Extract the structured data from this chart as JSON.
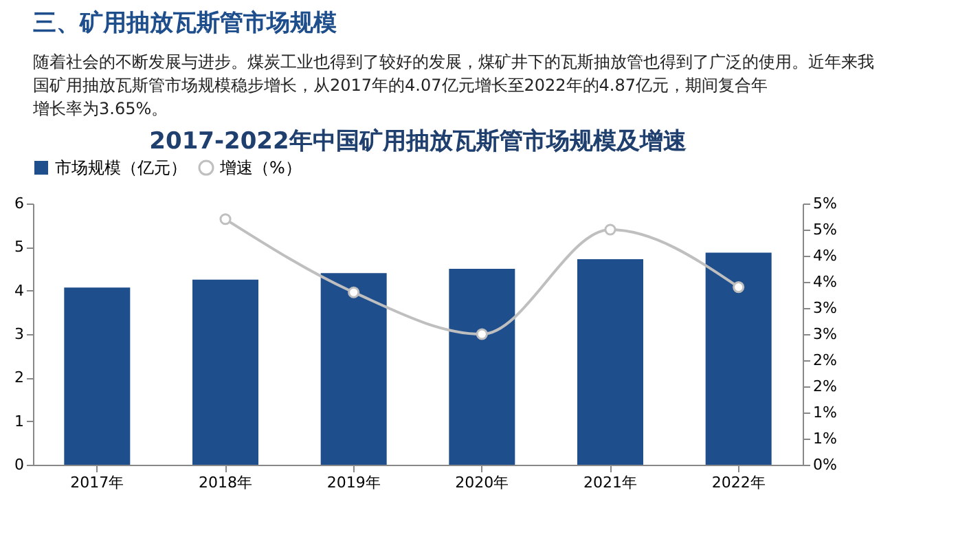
{
  "chart_data": {
    "type": "bar",
    "title": "2017-2022年中国矿用抽放瓦斯管市场规模及增速",
    "annotations": [
      "三、矿用抽放瓦斯管市场规模",
      "随着社会的不断发展与进步。煤炭工业也得到了较好的发展，煤矿井下的瓦斯抽放管也得到了广泛的使用。近年来我国矿用抽放瓦斯管市场规模稳步增长，从2017年的4.07亿元增长至2022年的4.87亿元，期间复合年增长率为3.65%。"
    ],
    "categories": [
      "2017年",
      "2018年",
      "2019年",
      "2020年",
      "2021年",
      "2022年"
    ],
    "series": [
      {
        "name": "市场规模（亿元）",
        "color": "#1f4e8c",
        "values": [
          4.07,
          4.25,
          4.4,
          4.5,
          4.72,
          4.87
        ]
      },
      {
        "name": "增速（%）",
        "type": "line",
        "axis": "y2",
        "color": "#bfbfbf",
        "marker": "circle",
        "values": [
          null,
          4.7,
          3.3,
          2.5,
          4.5,
          3.4
        ]
      }
    ],
    "ylim": [
      0,
      6
    ],
    "yticks": [
      0,
      1,
      2,
      3,
      4,
      5,
      6
    ],
    "y2lim": [
      0,
      5
    ],
    "y2ticks": [
      {
        "value": 0,
        "label": "0%"
      },
      {
        "value": 0.5,
        "label": "1%"
      },
      {
        "value": 1,
        "label": "1%"
      },
      {
        "value": 1.5,
        "label": "2%"
      },
      {
        "value": 2,
        "label": "2%"
      },
      {
        "value": 2.5,
        "label": "3%"
      },
      {
        "value": 3,
        "label": "3%"
      },
      {
        "value": 3.5,
        "label": "4%"
      },
      {
        "value": 4,
        "label": "4%"
      },
      {
        "value": 4.5,
        "label": "5%"
      },
      {
        "value": 5,
        "label": "5%"
      }
    ],
    "legend": "top",
    "grid": false
  }
}
